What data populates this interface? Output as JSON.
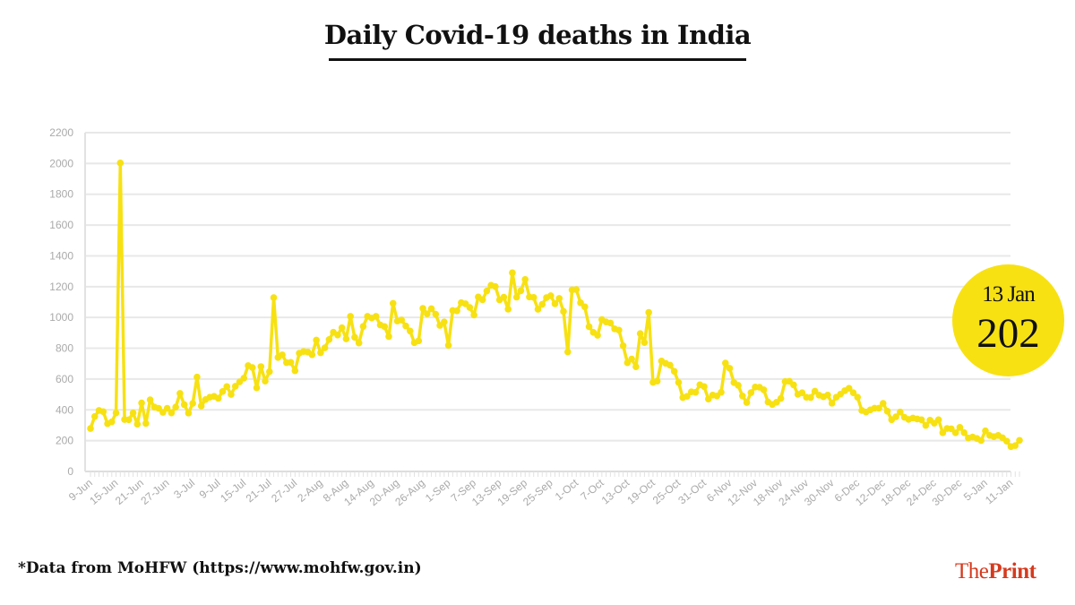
{
  "chart_data": {
    "type": "line",
    "title": "Daily Covid-19 deaths in India",
    "xlabel": "",
    "ylabel": "",
    "ylim": [
      0,
      2200
    ],
    "yticks": [
      0,
      200,
      400,
      600,
      800,
      1000,
      1200,
      1400,
      1600,
      1800,
      2000,
      2200
    ],
    "xtick_labels": [
      "9-Jun",
      "15-Jun",
      "21-Jun",
      "27-Jun",
      "3-Jul",
      "9-Jul",
      "15-Jul",
      "21-Jul",
      "27-Jul",
      "2-Aug",
      "8-Aug",
      "14-Aug",
      "20-Aug",
      "26-Aug",
      "1-Sep",
      "7-Sep",
      "13-Sep",
      "19-Sep",
      "25-Sep",
      "1-Oct",
      "7-Oct",
      "13-Oct",
      "19-Oct",
      "25-Oct",
      "31-Oct",
      "6-Nov",
      "12-Nov",
      "18-Nov",
      "24-Nov",
      "30-Nov",
      "6-Dec",
      "12-Dec",
      "18-Dec",
      "24-Dec",
      "30-Dec",
      "5-Jan",
      "11-Jan"
    ],
    "grid": true,
    "line_color": "#f7e113",
    "series": [
      {
        "months": [
          {
            "month": "Jun",
            "first_day": 9,
            "values": [
              279,
              357,
              396,
              388,
              310,
              322,
              380,
              2003,
              337,
              336,
              380,
              307,
              445,
              312,
              465,
              418,
              410,
              384,
              410,
              380,
              418,
              507
            ]
          },
          {
            "month": "Jul",
            "first_day": 1,
            "values": [
              434,
              379,
              442,
              613,
              425,
              467,
              482,
              488,
              475,
              519,
              551,
              500,
              553,
              582,
              606,
              687,
              675,
              543,
              681,
              587,
              648,
              1129,
              740,
              757,
              707,
              708,
              654,
              768,
              779,
              775,
              758
            ]
          },
          {
            "month": "Aug",
            "first_day": 1,
            "values": [
              853,
              771,
              803,
              857,
              904,
              886,
              933,
              861,
              1007,
              871,
              834,
              942,
              1007,
              996,
              1007,
              951,
              941,
              876,
              1092,
              977,
              983,
              945,
              912,
              836,
              848,
              1059,
              1023,
              1057,
              1021,
              948,
              971
            ]
          },
          {
            "month": "Sep",
            "first_day": 1,
            "values": [
              819,
              1045,
              1043,
              1096,
              1089,
              1065,
              1016,
              1133,
              1115,
              1172,
              1209,
              1201,
              1114,
              1132,
              1054,
              1290,
              1132,
              1174,
              1247,
              1133,
              1130,
              1053,
              1085,
              1129,
              1141,
              1089,
              1124,
              1039,
              776,
              1179
            ]
          },
          {
            "month": "Oct",
            "first_day": 1,
            "values": [
              1181,
              1095,
              1069,
              940,
              903,
              884,
              986,
              971,
              964,
              926,
              918,
              816,
              706,
              730,
              680,
              895,
              837,
              1033,
              579,
              587,
              717,
              702,
              690,
              650,
              578,
              480,
              488,
              517,
              514,
              563,
              551
            ]
          },
          {
            "month": "Nov",
            "first_day": 1,
            "values": [
              470,
              496,
              490,
              514,
              704,
              670,
              577,
              559,
              490,
              448,
              512,
              548,
              547,
              530,
              451,
              435,
              449,
              474,
              584,
              585,
              562,
              501,
              511,
              482,
              480,
              521,
              495,
              485,
              496,
              443
            ]
          },
          {
            "month": "Dec",
            "first_day": 1,
            "values": [
              482,
              502,
              524,
              540,
              511,
              482,
              396,
              386,
              400,
              411,
              411,
              442,
              391,
              336,
              355,
              386,
              352,
              338,
              347,
              341,
              336,
              299,
              333,
              313,
              336,
              251,
              279,
              277,
              251,
              286,
              252
            ]
          },
          {
            "month": "Jan",
            "first_day": 1,
            "values": [
              217,
              224,
              214,
              201,
              264,
              234,
              226,
              234,
              219,
              197,
              161,
              168,
              202
            ]
          }
        ]
      }
    ],
    "callout": {
      "date": "13 Jan",
      "value": "202"
    }
  },
  "source": "*Data from MoHFW (https://www.mohfw.gov.in)",
  "logo": {
    "part1": "The",
    "part2": "Print",
    "color": "#d63a1e"
  }
}
